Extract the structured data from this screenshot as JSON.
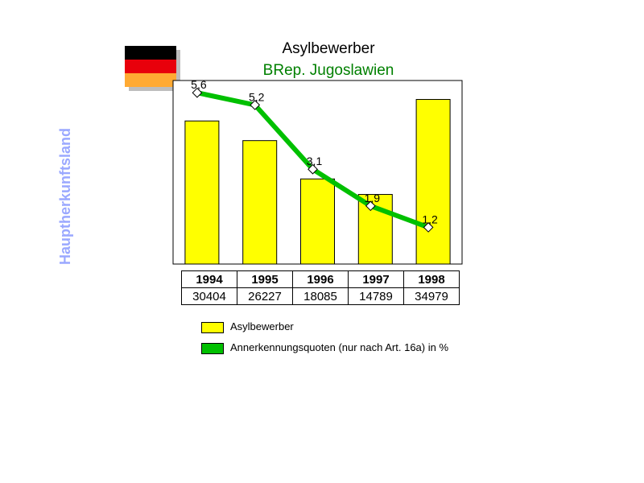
{
  "flag": {
    "colors": [
      "#000000",
      "#e8000b",
      "#ffaa33"
    ]
  },
  "side_label": "Hauptherkunftsland",
  "chart_data": {
    "type": "bar",
    "title": "Asylbewerber",
    "subtitle": "BRep. Jugoslawien",
    "categories": [
      "1994",
      "1995",
      "1996",
      "1997",
      "1998"
    ],
    "series": [
      {
        "name": "Asylbewerber",
        "type": "bar",
        "color": "#ffff00",
        "values": [
          30404,
          26227,
          18085,
          14789,
          34979
        ]
      },
      {
        "name": "Annerkennungsquoten (nur nach Art. 16a) in %",
        "type": "line",
        "color": "#00c000",
        "values": [
          5.6,
          5.2,
          3.1,
          1.9,
          1.2
        ],
        "labels": [
          "5,6",
          "5,2",
          "3,1",
          "1,9",
          "1,2"
        ]
      }
    ],
    "bar_ylim": [
      0,
      39000
    ],
    "line_ylim": [
      0,
      6.0
    ],
    "grid": false,
    "legend_placement": "bottom"
  }
}
